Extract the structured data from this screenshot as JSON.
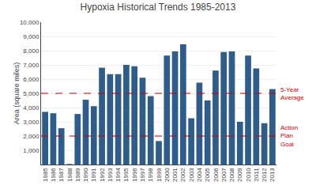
{
  "chart_data": {
    "type": "bar",
    "title": "Hypoxia Historical Trends 1985-2013",
    "ylabel": "Area (square miles)",
    "categories": [
      "1985",
      "1986",
      "1987",
      "1988",
      "1989",
      "1990",
      "1991",
      "1992",
      "1993",
      "1994",
      "1995",
      "1996",
      "1997",
      "1998",
      "1999",
      "2000",
      "2001",
      "2002",
      "2003",
      "2004",
      "2005",
      "2006",
      "2007",
      "2008",
      "2009",
      "2010",
      "2011",
      "2012",
      "2013"
    ],
    "values": [
      3700,
      3600,
      2550,
      40,
      3550,
      4550,
      4100,
      6800,
      6350,
      6350,
      7000,
      6900,
      6100,
      4800,
      1650,
      7650,
      7950,
      8450,
      3250,
      5750,
      4500,
      6600,
      7900,
      7950,
      3000,
      7650,
      6750,
      2900,
      5300
    ],
    "color": "#2E5D8B",
    "ylim": [
      0,
      10000
    ],
    "yticks": [
      {
        "value": 1000,
        "label": "1,000"
      },
      {
        "value": 2000,
        "label": "2,000"
      },
      {
        "value": 3000,
        "label": "3,000"
      },
      {
        "value": 4000,
        "label": "4,000"
      },
      {
        "value": 5000,
        "label": "5,000"
      },
      {
        "value": 6000,
        "label": "6,000"
      },
      {
        "value": 7000,
        "label": "7,000"
      },
      {
        "value": 8000,
        "label": "8,000"
      },
      {
        "value": 9000,
        "label": "9,000"
      },
      {
        "value": 10000,
        "label": "10,000"
      }
    ],
    "grid": true,
    "annotations": [
      {
        "text": "Action\nPlan\nGoal",
        "y": 2000,
        "color": "#CC0000",
        "line_style": "dashed"
      },
      {
        "text": "5-Year\nAverage",
        "y": 5000,
        "color": "#CC0000",
        "line_style": "dashed"
      }
    ]
  }
}
